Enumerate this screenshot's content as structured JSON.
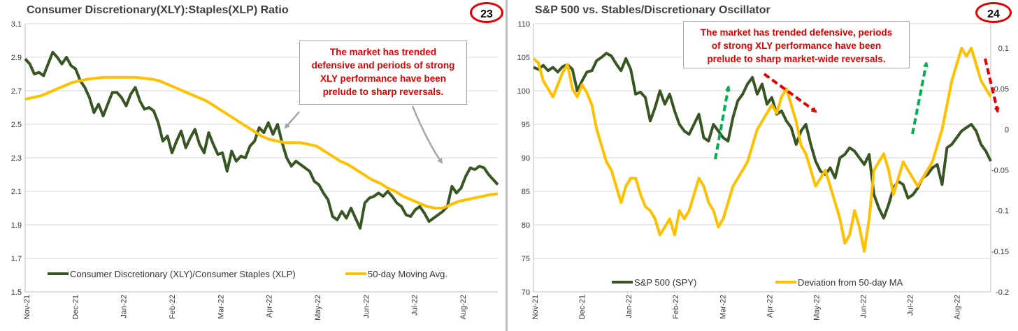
{
  "chart_data": [
    {
      "type": "line",
      "badge": "23",
      "title": "Consumer Discretionary(XLY):Staples(XLP) Ratio",
      "callout": [
        "The market has trended",
        "defensive and periods of strong",
        "XLY performance have been",
        "prelude to sharp reversals."
      ],
      "ylim": [
        1.5,
        3.1
      ],
      "yticks": [
        "3.1",
        "2.9",
        "2.7",
        "2.5",
        "2.3",
        "2.1",
        "1.9",
        "1.7",
        "1.5"
      ],
      "x_labels": [
        "Nov-21",
        "Dec-21",
        "Jan-22",
        "Feb-22",
        "Mar-22",
        "Apr-22",
        "May-22",
        "Jun-22",
        "Jul-22",
        "Aug-22"
      ],
      "series": [
        {
          "name": "Consumer Discretionary (XLY)/Consumer Staples (XLP)",
          "color": "#375623",
          "values": [
            2.89,
            2.86,
            2.8,
            2.81,
            2.79,
            2.86,
            2.93,
            2.9,
            2.86,
            2.9,
            2.85,
            2.83,
            2.76,
            2.72,
            2.66,
            2.57,
            2.62,
            2.55,
            2.62,
            2.69,
            2.69,
            2.66,
            2.61,
            2.68,
            2.72,
            2.64,
            2.59,
            2.6,
            2.58,
            2.51,
            2.4,
            2.43,
            2.33,
            2.4,
            2.46,
            2.36,
            2.42,
            2.47,
            2.38,
            2.33,
            2.45,
            2.38,
            2.32,
            2.33,
            2.22,
            2.34,
            2.28,
            2.31,
            2.3,
            2.37,
            2.4,
            2.48,
            2.45,
            2.51,
            2.44,
            2.5,
            2.39,
            2.3,
            2.25,
            2.28,
            2.26,
            2.24,
            2.22,
            2.16,
            2.14,
            2.09,
            2.05,
            1.95,
            1.93,
            1.98,
            1.94,
            2.0,
            1.94,
            1.88,
            2.03,
            2.06,
            2.07,
            2.09,
            2.07,
            2.1,
            2.07,
            2.03,
            2.01,
            1.96,
            1.95,
            1.99,
            2.01,
            1.97,
            1.92,
            1.94,
            1.96,
            1.98,
            2.01,
            2.13,
            2.09,
            2.12,
            2.19,
            2.24,
            2.23,
            2.25,
            2.24,
            2.2,
            2.17,
            2.14
          ]
        },
        {
          "name": "50-day Moving Avg.",
          "color": "#ffc000",
          "values": [
            2.65,
            2.66,
            2.67,
            2.69,
            2.71,
            2.73,
            2.75,
            2.76,
            2.77,
            2.775,
            2.78,
            2.78,
            2.78,
            2.78,
            2.78,
            2.775,
            2.77,
            2.76,
            2.74,
            2.72,
            2.7,
            2.68,
            2.66,
            2.64,
            2.61,
            2.58,
            2.55,
            2.52,
            2.49,
            2.46,
            2.43,
            2.41,
            2.4,
            2.39,
            2.39,
            2.39,
            2.38,
            2.37,
            2.34,
            2.31,
            2.28,
            2.26,
            2.23,
            2.2,
            2.17,
            2.15,
            2.12,
            2.1,
            2.07,
            2.05,
            2.03,
            2.01,
            2.0,
            2.0,
            2.02,
            2.04,
            2.05,
            2.06,
            2.07,
            2.08,
            2.085
          ]
        }
      ]
    },
    {
      "type": "line",
      "badge": "24",
      "title": "S&P 500 vs. Stables/Discretionary Oscillator",
      "callout": [
        "The market has trended defensive, periods",
        "of strong XLY performance have been",
        "prelude to sharp market-wide reversals."
      ],
      "ylim": [
        70,
        110
      ],
      "y2lim": [
        -0.2,
        0.13
      ],
      "yticks": [
        "110",
        "105",
        "100",
        "95",
        "90",
        "85",
        "80",
        "75",
        "70"
      ],
      "y2ticks": [
        "0.1",
        "0.05",
        "0",
        "-0.05",
        "-0.1",
        "-0.15",
        "-0.2"
      ],
      "x_labels": [
        "Nov-21",
        "Dec-21",
        "Jan-22",
        "Feb-22",
        "Mar-22",
        "Apr-22",
        "May-22",
        "Jun-22",
        "Jul-22",
        "Aug-22"
      ],
      "series": [
        {
          "name": "S&P 500 (SPY)",
          "color": "#375623",
          "axis": "left",
          "values": [
            103.5,
            103.2,
            103.8,
            103.0,
            103.5,
            102.8,
            103.6,
            103.9,
            103.2,
            100.0,
            101.5,
            102.8,
            103.0,
            104.5,
            105.0,
            105.6,
            105.2,
            104.0,
            103.0,
            104.8,
            103.2,
            99.5,
            99.8,
            99.0,
            95.5,
            97.5,
            100.0,
            98.0,
            99.5,
            97.0,
            95.0,
            94.0,
            93.5,
            95.0,
            96.5,
            93.0,
            92.5,
            95.0,
            94.0,
            93.0,
            92.5,
            96.0,
            98.5,
            99.5,
            101.0,
            102.0,
            99.5,
            101.0,
            98.0,
            99.0,
            96.5,
            97.0,
            95.5,
            94.5,
            92.0,
            94.0,
            95.0,
            92.0,
            89.5,
            88.0,
            87.5,
            88.5,
            87.0,
            90.0,
            90.5,
            91.5,
            91.0,
            90.0,
            89.0,
            90.5,
            84.5,
            82.5,
            81.0,
            83.0,
            85.5,
            86.5,
            86.0,
            84.0,
            84.5,
            85.5,
            87.0,
            87.5,
            88.5,
            89.0,
            86.0,
            91.5,
            92.0,
            93.0,
            94.0,
            94.5,
            95.0,
            94.0,
            92.0,
            91.0,
            89.5
          ]
        },
        {
          "name": "Deviation from 50-day MA",
          "color": "#ffc000",
          "axis": "right",
          "values": [
            0.087,
            0.082,
            0.06,
            0.05,
            0.04,
            0.055,
            0.07,
            0.08,
            0.05,
            0.04,
            0.055,
            0.045,
            0.03,
            0.0,
            -0.02,
            -0.04,
            -0.05,
            -0.07,
            -0.09,
            -0.07,
            -0.06,
            -0.06,
            -0.08,
            -0.095,
            -0.1,
            -0.11,
            -0.13,
            -0.12,
            -0.11,
            -0.13,
            -0.1,
            -0.11,
            -0.1,
            -0.08,
            -0.06,
            -0.07,
            -0.09,
            -0.1,
            -0.12,
            -0.11,
            -0.09,
            -0.07,
            -0.06,
            -0.05,
            -0.04,
            -0.02,
            0.0,
            0.01,
            0.02,
            0.03,
            0.02,
            0.04,
            0.05,
            0.03,
            0.01,
            -0.02,
            -0.03,
            -0.05,
            -0.07,
            -0.06,
            -0.05,
            -0.07,
            -0.09,
            -0.11,
            -0.14,
            -0.13,
            -0.1,
            -0.12,
            -0.15,
            -0.11,
            -0.05,
            -0.04,
            -0.03,
            -0.05,
            -0.08,
            -0.06,
            -0.04,
            -0.05,
            -0.06,
            -0.07,
            -0.06,
            -0.05,
            -0.04,
            -0.02,
            0.0,
            0.03,
            0.06,
            0.08,
            0.1,
            0.09,
            0.1,
            0.08,
            0.06,
            0.05,
            0.04
          ]
        }
      ]
    }
  ]
}
